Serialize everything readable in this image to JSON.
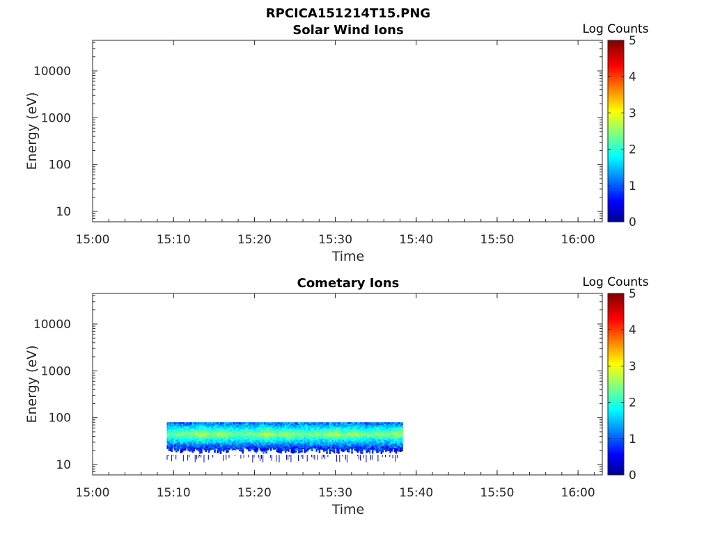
{
  "figure_title": "RPCICA151214T15.PNG",
  "colors": {
    "axis": "#262626",
    "jet_stops": [
      "#00008f",
      "#0000ff",
      "#00ffff",
      "#ffff00",
      "#ff0000",
      "#800000"
    ]
  },
  "chart_data": [
    {
      "type": "heatmap",
      "title": "Solar Wind Ions",
      "xlabel": "Time",
      "ylabel": "Energy (eV)",
      "x_ticks": [
        "15:00",
        "15:10",
        "15:20",
        "15:30",
        "15:40",
        "15:50",
        "16:00"
      ],
      "x_range": [
        "15:00",
        "16:03"
      ],
      "y_scale": "log",
      "y_range": [
        6,
        45000
      ],
      "y_ticks": [
        10,
        100,
        1000,
        10000
      ],
      "y_tick_labels": [
        "10",
        "100",
        "1000",
        "10000"
      ],
      "colorbar": {
        "title": "Log Counts",
        "range": [
          0,
          5
        ],
        "ticks": [
          "0",
          "1",
          "2",
          "3",
          "4",
          "5"
        ]
      },
      "data_extent": null
    },
    {
      "type": "heatmap",
      "title": "Cometary Ions",
      "xlabel": "Time",
      "ylabel": "Energy (eV)",
      "x_ticks": [
        "15:00",
        "15:10",
        "15:20",
        "15:30",
        "15:40",
        "15:50",
        "16:00"
      ],
      "x_range": [
        "15:00",
        "16:03"
      ],
      "y_scale": "log",
      "y_range": [
        6,
        45000
      ],
      "y_ticks": [
        10,
        100,
        1000,
        10000
      ],
      "y_tick_labels": [
        "10",
        "100",
        "1000",
        "10000"
      ],
      "colorbar": {
        "title": "Log Counts",
        "range": [
          0,
          5
        ],
        "ticks": [
          "0",
          "1",
          "2",
          "3",
          "4",
          "5"
        ]
      },
      "data_extent": {
        "time_start": "15:09:10",
        "time_end": "15:38:20",
        "energy_min_eV": 17,
        "energy_max_eV": 80,
        "peak_energy_eV": 45,
        "log_counts_peak_range": [
          2.0,
          2.7
        ],
        "log_counts_edge_range": [
          0.3,
          1.2
        ]
      }
    }
  ]
}
